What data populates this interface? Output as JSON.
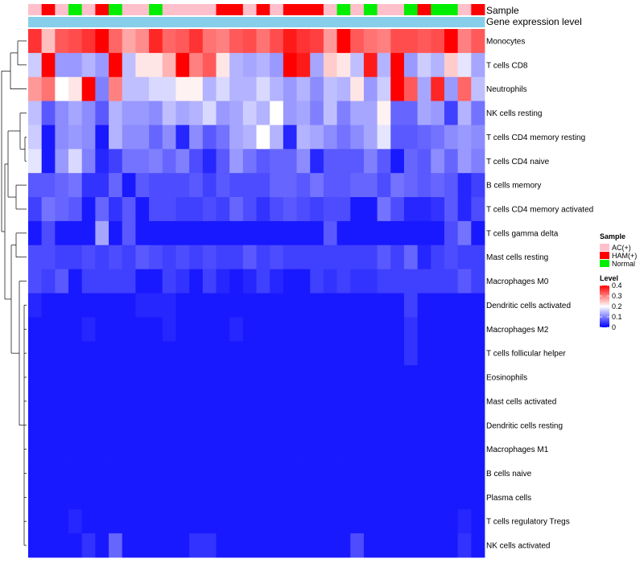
{
  "chart_data": {
    "type": "heatmap",
    "annotation_titles": [
      "Sample",
      "Gene expression level"
    ],
    "columns": 34,
    "sample_groups": [
      "AC",
      "HAM",
      "AC",
      "Normal",
      "AC",
      "HAM",
      "Normal",
      "AC",
      "AC",
      "Normal",
      "AC",
      "AC",
      "AC",
      "AC",
      "HAM",
      "HAM",
      "AC",
      "HAM",
      "AC",
      "HAM",
      "HAM",
      "HAM",
      "AC",
      "Normal",
      "AC",
      "Normal",
      "AC",
      "AC",
      "Normal",
      "HAM",
      "Normal",
      "Normal",
      "AC",
      "HAM"
    ],
    "rows": [
      "Monocytes",
      "T cells CD8",
      "Neutrophils",
      "NK cells resting",
      "T cells CD4 memory resting",
      "T cells CD4 naive",
      "B cells memory",
      "T cells CD4 memory activated",
      "T cells gamma delta",
      "Mast cells resting",
      "Macrophages M0",
      "Dendritic cells activated",
      "Macrophages M2",
      "T cells follicular helper",
      "Eosinophils",
      "Mast cells activated",
      "Dendritic cells resting",
      "Macrophages M1",
      "B cells naive",
      "Plasma cells",
      "T cells regulatory  Tregs",
      "NK cells activated"
    ],
    "values": [
      [
        0.36,
        0.25,
        0.33,
        0.34,
        0.36,
        0.4,
        0.32,
        0.27,
        0.29,
        0.37,
        0.32,
        0.33,
        0.36,
        0.31,
        0.3,
        0.33,
        0.34,
        0.31,
        0.34,
        0.38,
        0.36,
        0.35,
        0.28,
        0.4,
        0.33,
        0.31,
        0.3,
        0.34,
        0.34,
        0.33,
        0.34,
        0.4,
        0.3,
        0.33
      ],
      [
        0.16,
        0.4,
        0.12,
        0.12,
        0.14,
        0.12,
        0.4,
        0.15,
        0.22,
        0.22,
        0.26,
        0.4,
        0.3,
        0.33,
        0.22,
        0.14,
        0.13,
        0.14,
        0.12,
        0.4,
        0.38,
        0.13,
        0.24,
        0.22,
        0.15,
        0.38,
        0.14,
        0.4,
        0.12,
        0.16,
        0.14,
        0.24,
        0.18,
        0.13
      ],
      [
        0.28,
        0.31,
        0.2,
        0.22,
        0.4,
        0.1,
        0.3,
        0.15,
        0.15,
        0.17,
        0.17,
        0.21,
        0.21,
        0.14,
        0.17,
        0.14,
        0.14,
        0.17,
        0.14,
        0.12,
        0.14,
        0.11,
        0.15,
        0.14,
        0.22,
        0.12,
        0.16,
        0.4,
        0.33,
        0.13,
        0.37,
        0.12,
        0.32,
        0.15
      ],
      [
        0.15,
        0.07,
        0.11,
        0.13,
        0.11,
        0.07,
        0.14,
        0.12,
        0.12,
        0.11,
        0.15,
        0.13,
        0.14,
        0.17,
        0.12,
        0.13,
        0.16,
        0.14,
        0.2,
        0.12,
        0.13,
        0.1,
        0.15,
        0.1,
        0.13,
        0.13,
        0.21,
        0.08,
        0.08,
        0.13,
        0.12,
        0.05,
        0.14,
        0.09
      ],
      [
        0.16,
        0.02,
        0.11,
        0.12,
        0.11,
        0.02,
        0.14,
        0.11,
        0.11,
        0.08,
        0.11,
        0.03,
        0.11,
        0.07,
        0.09,
        0.13,
        0.14,
        0.2,
        0.14,
        0.03,
        0.14,
        0.13,
        0.11,
        0.09,
        0.11,
        0.13,
        0.18,
        0.07,
        0.07,
        0.08,
        0.09,
        0.11,
        0.12,
        0.11
      ],
      [
        0.18,
        0.02,
        0.12,
        0.17,
        0.1,
        0.03,
        0.05,
        0.09,
        0.09,
        0.1,
        0.08,
        0.1,
        0.06,
        0.03,
        0.07,
        0.12,
        0.09,
        0.07,
        0.08,
        0.08,
        0.11,
        0.03,
        0.07,
        0.07,
        0.07,
        0.1,
        0.07,
        0.02,
        0.08,
        0.07,
        0.11,
        0.08,
        0.12,
        0.1
      ],
      [
        0.07,
        0.07,
        0.08,
        0.09,
        0.04,
        0.04,
        0.08,
        0.02,
        0.07,
        0.06,
        0.06,
        0.06,
        0.07,
        0.05,
        0.07,
        0.06,
        0.06,
        0.06,
        0.08,
        0.08,
        0.07,
        0.09,
        0.07,
        0.07,
        0.08,
        0.08,
        0.06,
        0.09,
        0.08,
        0.07,
        0.08,
        0.07,
        0.03,
        0.05
      ],
      [
        0.05,
        0.09,
        0.08,
        0.07,
        0.02,
        0.08,
        0.04,
        0.07,
        0.02,
        0.06,
        0.06,
        0.05,
        0.05,
        0.06,
        0.05,
        0.08,
        0.06,
        0.04,
        0.06,
        0.07,
        0.06,
        0.05,
        0.06,
        0.06,
        0.02,
        0.02,
        0.09,
        0.06,
        0.03,
        0.03,
        0.04,
        0.07,
        0.03,
        0.06
      ],
      [
        0.02,
        0.06,
        0.02,
        0.02,
        0.02,
        0.13,
        0.02,
        0.07,
        0.02,
        0.02,
        0.02,
        0.02,
        0.02,
        0.02,
        0.02,
        0.02,
        0.02,
        0.02,
        0.02,
        0.02,
        0.02,
        0.02,
        0.07,
        0.02,
        0.02,
        0.02,
        0.02,
        0.02,
        0.02,
        0.02,
        0.02,
        0.06,
        0.09,
        0.02
      ],
      [
        0.06,
        0.06,
        0.05,
        0.05,
        0.06,
        0.05,
        0.06,
        0.05,
        0.07,
        0.06,
        0.05,
        0.06,
        0.05,
        0.06,
        0.05,
        0.05,
        0.07,
        0.05,
        0.06,
        0.05,
        0.05,
        0.05,
        0.05,
        0.05,
        0.05,
        0.05,
        0.07,
        0.05,
        0.08,
        0.03,
        0.05,
        0.06,
        0.05,
        0.05
      ],
      [
        0.06,
        0.05,
        0.07,
        0.02,
        0.05,
        0.05,
        0.05,
        0.05,
        0.02,
        0.02,
        0.05,
        0.04,
        0.02,
        0.05,
        0.03,
        0.02,
        0.03,
        0.05,
        0.03,
        0.02,
        0.02,
        0.05,
        0.04,
        0.05,
        0.04,
        0.04,
        0.05,
        0.05,
        0.05,
        0.05,
        0.05,
        0.05,
        0.07,
        0.05
      ],
      [
        0.03,
        0.02,
        0.02,
        0.02,
        0.02,
        0.02,
        0.02,
        0.02,
        0.03,
        0.03,
        0.03,
        0.02,
        0.02,
        0.02,
        0.02,
        0.02,
        0.02,
        0.02,
        0.02,
        0.02,
        0.02,
        0.02,
        0.02,
        0.02,
        0.02,
        0.02,
        0.02,
        0.02,
        0.05,
        0.02,
        0.02,
        0.02,
        0.02,
        0.02
      ],
      [
        0.02,
        0.02,
        0.02,
        0.02,
        0.03,
        0.02,
        0.02,
        0.02,
        0.02,
        0.02,
        0.03,
        0.02,
        0.02,
        0.02,
        0.02,
        0.03,
        0.02,
        0.02,
        0.02,
        0.02,
        0.02,
        0.02,
        0.02,
        0.02,
        0.02,
        0.02,
        0.02,
        0.02,
        0.04,
        0.02,
        0.02,
        0.02,
        0.02,
        0.02
      ],
      [
        0.02,
        0.02,
        0.02,
        0.02,
        0.02,
        0.02,
        0.02,
        0.02,
        0.02,
        0.02,
        0.02,
        0.02,
        0.02,
        0.02,
        0.02,
        0.02,
        0.02,
        0.02,
        0.02,
        0.02,
        0.02,
        0.02,
        0.02,
        0.02,
        0.02,
        0.02,
        0.02,
        0.02,
        0.04,
        0.02,
        0.02,
        0.02,
        0.02,
        0.02
      ],
      [
        0.02,
        0.02,
        0.02,
        0.02,
        0.02,
        0.02,
        0.02,
        0.02,
        0.02,
        0.02,
        0.02,
        0.02,
        0.02,
        0.02,
        0.02,
        0.02,
        0.02,
        0.02,
        0.02,
        0.02,
        0.02,
        0.02,
        0.02,
        0.02,
        0.02,
        0.02,
        0.02,
        0.02,
        0.02,
        0.02,
        0.02,
        0.02,
        0.02,
        0.02
      ],
      [
        0.02,
        0.02,
        0.02,
        0.02,
        0.02,
        0.02,
        0.02,
        0.02,
        0.02,
        0.02,
        0.02,
        0.02,
        0.02,
        0.02,
        0.02,
        0.02,
        0.02,
        0.02,
        0.02,
        0.02,
        0.02,
        0.02,
        0.02,
        0.02,
        0.02,
        0.02,
        0.02,
        0.02,
        0.02,
        0.02,
        0.02,
        0.02,
        0.02,
        0.02
      ],
      [
        0.02,
        0.02,
        0.02,
        0.02,
        0.02,
        0.02,
        0.02,
        0.02,
        0.02,
        0.02,
        0.02,
        0.02,
        0.02,
        0.02,
        0.02,
        0.02,
        0.02,
        0.02,
        0.02,
        0.02,
        0.02,
        0.02,
        0.02,
        0.02,
        0.02,
        0.02,
        0.02,
        0.02,
        0.02,
        0.02,
        0.02,
        0.02,
        0.02,
        0.02
      ],
      [
        0.02,
        0.02,
        0.02,
        0.02,
        0.02,
        0.02,
        0.02,
        0.02,
        0.02,
        0.02,
        0.02,
        0.02,
        0.02,
        0.02,
        0.02,
        0.02,
        0.02,
        0.02,
        0.02,
        0.02,
        0.02,
        0.02,
        0.02,
        0.02,
        0.02,
        0.02,
        0.02,
        0.02,
        0.02,
        0.02,
        0.02,
        0.02,
        0.02,
        0.02
      ],
      [
        0.02,
        0.02,
        0.02,
        0.02,
        0.02,
        0.02,
        0.02,
        0.02,
        0.02,
        0.02,
        0.02,
        0.02,
        0.02,
        0.02,
        0.02,
        0.02,
        0.02,
        0.02,
        0.02,
        0.02,
        0.02,
        0.02,
        0.02,
        0.02,
        0.02,
        0.02,
        0.02,
        0.02,
        0.02,
        0.02,
        0.02,
        0.02,
        0.02,
        0.02
      ],
      [
        0.02,
        0.02,
        0.02,
        0.02,
        0.02,
        0.02,
        0.02,
        0.02,
        0.02,
        0.02,
        0.02,
        0.02,
        0.02,
        0.02,
        0.02,
        0.02,
        0.02,
        0.02,
        0.02,
        0.02,
        0.02,
        0.02,
        0.02,
        0.02,
        0.02,
        0.02,
        0.02,
        0.02,
        0.02,
        0.02,
        0.02,
        0.02,
        0.02,
        0.02
      ],
      [
        0.02,
        0.02,
        0.02,
        0.03,
        0.02,
        0.02,
        0.02,
        0.02,
        0.02,
        0.02,
        0.02,
        0.02,
        0.02,
        0.02,
        0.02,
        0.02,
        0.02,
        0.02,
        0.02,
        0.02,
        0.02,
        0.02,
        0.02,
        0.02,
        0.02,
        0.02,
        0.02,
        0.02,
        0.02,
        0.02,
        0.02,
        0.02,
        0.03,
        0.02
      ],
      [
        0.02,
        0.02,
        0.02,
        0.02,
        0.04,
        0.02,
        0.08,
        0.02,
        0.02,
        0.02,
        0.02,
        0.02,
        0.04,
        0.04,
        0.02,
        0.02,
        0.02,
        0.02,
        0.02,
        0.02,
        0.02,
        0.02,
        0.02,
        0.02,
        0.06,
        0.02,
        0.02,
        0.02,
        0.02,
        0.02,
        0.02,
        0.02,
        0.04,
        0.02
      ]
    ],
    "gene_expression_level": "uniform",
    "legend": {
      "sample_title": "Sample",
      "sample_entries": [
        {
          "label": "AC(+)",
          "color": "#ffc0cb"
        },
        {
          "label": "HAM(+)",
          "color": "#ff0000"
        },
        {
          "label": "Normal",
          "color": "#00ee00"
        }
      ],
      "level_title": "Level",
      "level_ticks": [
        "0.4",
        "0.3",
        "0.2",
        "0.1",
        "0"
      ],
      "level_range": [
        0,
        0.4
      ]
    },
    "colors": {
      "low": "#0000ff",
      "mid": "#ffffff",
      "high": "#ff0000",
      "gene_expression_bar": "#87ceeb"
    },
    "grid": false,
    "legend_position": "right"
  }
}
